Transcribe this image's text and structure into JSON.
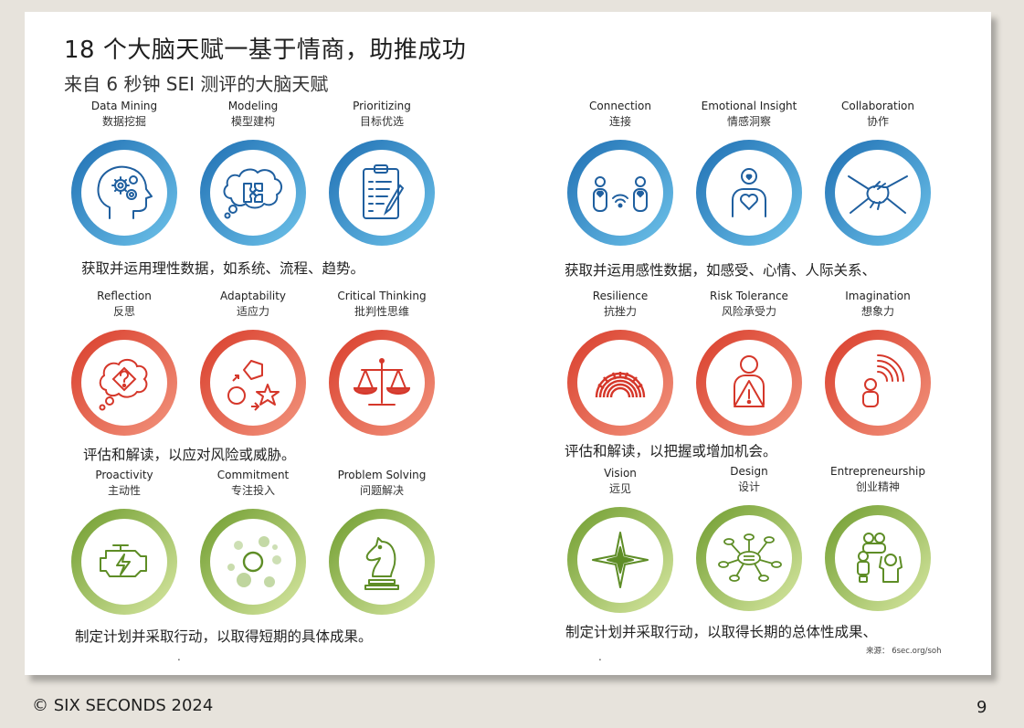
{
  "title": "18 个大脑天赋一基于情商，助推成功",
  "subtitle": "来自 6 秒钟 SEI 测评的大脑天赋",
  "colors": {
    "blue_dark": "#1f6fb3",
    "blue_light": "#6ec3ea",
    "red_dark": "#d93d2b",
    "red_light": "#f2957e",
    "green_dark": "#6f9c2e",
    "green_light": "#d8e8a3",
    "icon_blue": "#1f5f9f",
    "icon_red": "#d5372a",
    "icon_green": "#5e8d26"
  },
  "talents": [
    {
      "en": "Data Mining",
      "zh": "数据挖掘",
      "icon": "head-gears-icon",
      "color": "blue"
    },
    {
      "en": "Modeling",
      "zh": "模型建构",
      "icon": "puzzle-cloud-icon",
      "color": "blue"
    },
    {
      "en": "Prioritizing",
      "zh": "目标优选",
      "icon": "clipboard-icon",
      "color": "blue"
    },
    {
      "en": "Connection",
      "zh": "连接",
      "icon": "two-people-wifi-icon",
      "color": "blue"
    },
    {
      "en": "Emotional Insight",
      "zh": "情感洞察",
      "icon": "person-heart-icon",
      "color": "blue"
    },
    {
      "en": "Collaboration",
      "zh": "协作",
      "icon": "joined-hands-icon",
      "color": "blue"
    },
    {
      "en": "Reflection",
      "zh": "反思",
      "icon": "question-cloud-icon",
      "color": "red"
    },
    {
      "en": "Adaptability",
      "zh": "适应力",
      "icon": "shapes-cycle-icon",
      "color": "red"
    },
    {
      "en": "Critical Thinking",
      "zh": "批判性思维",
      "icon": "scales-icon",
      "color": "red"
    },
    {
      "en": "Resilience",
      "zh": "抗挫力",
      "icon": "spring-icon",
      "color": "red"
    },
    {
      "en": "Risk Tolerance",
      "zh": "风险承受力",
      "icon": "person-warning-icon",
      "color": "red"
    },
    {
      "en": "Imagination",
      "zh": "想象力",
      "icon": "person-waves-icon",
      "color": "red"
    },
    {
      "en": "Proactivity",
      "zh": "主动性",
      "icon": "engine-icon",
      "color": "green"
    },
    {
      "en": "Commitment",
      "zh": "专注投入",
      "icon": "focus-circles-icon",
      "color": "green"
    },
    {
      "en": "Problem Solving",
      "zh": "问题解决",
      "icon": "chess-knight-icon",
      "color": "green"
    },
    {
      "en": "Vision",
      "zh": "远见",
      "icon": "compass-star-icon",
      "color": "green"
    },
    {
      "en": "Design",
      "zh": "设计",
      "icon": "mind-map-icon",
      "color": "green"
    },
    {
      "en": "Entrepreneurship",
      "zh": "创业精神",
      "icon": "team-cheer-icon",
      "color": "green"
    }
  ],
  "descriptions": {
    "rational_data": "获取并运用理性数据，如系统、流程、趋势。",
    "emotional_data": "获取并运用感性数据，如感受、心情、人际关系、",
    "evaluate_risk": "评估和解读，以应对风险或威胁。",
    "evaluate_opportunity": "评估和解读，以把握或增加机会。",
    "short_term": "制定计划并采取行动，以取得短期的具体成果。",
    "long_term": "制定计划并采取行动，以取得长期的总体性成果、"
  },
  "stray_dot": ".",
  "source": "来源： 6sec.org/soh",
  "footer": "© SIX SECONDS 2024",
  "page_number": "9"
}
